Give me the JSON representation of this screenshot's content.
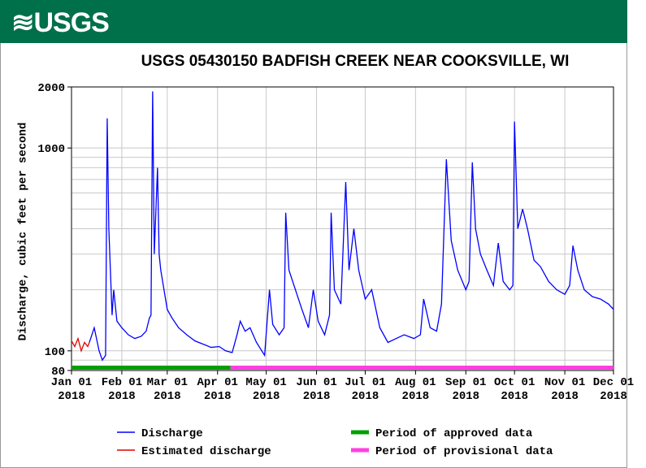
{
  "header": {
    "logo": "≋USGS"
  },
  "chart_data": {
    "type": "line",
    "title": "USGS 05430150 BADFISH CREEK NEAR COOKSVILLE, WI",
    "ylabel": "Discharge, cubic feet per second",
    "log_y": true,
    "grid": true,
    "ylim": [
      80,
      2000
    ],
    "yticks": [
      80,
      100,
      1000,
      2000
    ],
    "minor_grid": [
      90,
      200,
      300,
      400,
      500,
      600,
      700,
      800,
      900
    ],
    "xlim": [
      "2018-01-01",
      "2018-12-01"
    ],
    "xticks": [
      {
        "value": "2018-01-01",
        "label": "Jan 01\n2018"
      },
      {
        "value": "2018-02-01",
        "label": "Feb 01\n2018"
      },
      {
        "value": "2018-03-01",
        "label": "Mar 01\n2018"
      },
      {
        "value": "2018-04-01",
        "label": "Apr 01\n2018"
      },
      {
        "value": "2018-05-01",
        "label": "May 01\n2018"
      },
      {
        "value": "2018-06-01",
        "label": "Jun 01\n2018"
      },
      {
        "value": "2018-07-01",
        "label": "Jul 01\n2018"
      },
      {
        "value": "2018-08-01",
        "label": "Aug 01\n2018"
      },
      {
        "value": "2018-09-01",
        "label": "Sep 01\n2018"
      },
      {
        "value": "2018-10-01",
        "label": "Oct 01\n2018"
      },
      {
        "value": "2018-11-01",
        "label": "Nov 01\n2018"
      },
      {
        "value": "2018-12-01",
        "label": "Dec 01\n2018"
      }
    ],
    "series": [
      {
        "name": "Discharge",
        "color": "#0000ff",
        "x": [
          "2018-01-12",
          "2018-01-15",
          "2018-01-18",
          "2018-01-20",
          "2018-01-22",
          "2018-01-23",
          "2018-01-24",
          "2018-01-26",
          "2018-01-27",
          "2018-01-29",
          "2018-02-01",
          "2018-02-05",
          "2018-02-09",
          "2018-02-13",
          "2018-02-16",
          "2018-02-18",
          "2018-02-19",
          "2018-02-20",
          "2018-02-21",
          "2018-02-23",
          "2018-02-24",
          "2018-02-25",
          "2018-02-27",
          "2018-03-01",
          "2018-03-04",
          "2018-03-08",
          "2018-03-13",
          "2018-03-18",
          "2018-03-23",
          "2018-03-28",
          "2018-04-02",
          "2018-04-06",
          "2018-04-10",
          "2018-04-13",
          "2018-04-15",
          "2018-04-18",
          "2018-04-21",
          "2018-04-25",
          "2018-04-30",
          "2018-05-03",
          "2018-05-05",
          "2018-05-09",
          "2018-05-12",
          "2018-05-13",
          "2018-05-15",
          "2018-05-19",
          "2018-05-23",
          "2018-05-27",
          "2018-05-30",
          "2018-06-02",
          "2018-06-06",
          "2018-06-09",
          "2018-06-10",
          "2018-06-12",
          "2018-06-16",
          "2018-06-19",
          "2018-06-21",
          "2018-06-24",
          "2018-06-27",
          "2018-07-01",
          "2018-07-05",
          "2018-07-10",
          "2018-07-15",
          "2018-07-20",
          "2018-07-25",
          "2018-07-31",
          "2018-08-04",
          "2018-08-06",
          "2018-08-10",
          "2018-08-14",
          "2018-08-17",
          "2018-08-20",
          "2018-08-23",
          "2018-08-27",
          "2018-09-01",
          "2018-09-03",
          "2018-09-05",
          "2018-09-07",
          "2018-09-10",
          "2018-09-14",
          "2018-09-18",
          "2018-09-21",
          "2018-09-24",
          "2018-09-28",
          "2018-09-30",
          "2018-10-01",
          "2018-10-03",
          "2018-10-06",
          "2018-10-09",
          "2018-10-13",
          "2018-10-17",
          "2018-10-22",
          "2018-10-27",
          "2018-11-01",
          "2018-11-04",
          "2018-11-06",
          "2018-11-09",
          "2018-11-13",
          "2018-11-18",
          "2018-11-23",
          "2018-11-28",
          "2018-12-01"
        ],
        "values": [
          110,
          130,
          100,
          90,
          95,
          1400,
          400,
          150,
          200,
          140,
          130,
          120,
          115,
          118,
          125,
          145,
          150,
          1900,
          300,
          800,
          300,
          250,
          200,
          160,
          145,
          130,
          120,
          112,
          108,
          104,
          105,
          100,
          98,
          120,
          140,
          125,
          130,
          110,
          95,
          200,
          135,
          120,
          130,
          480,
          250,
          200,
          160,
          130,
          200,
          140,
          120,
          150,
          480,
          200,
          170,
          680,
          250,
          400,
          250,
          180,
          200,
          130,
          110,
          115,
          120,
          115,
          120,
          180,
          130,
          125,
          170,
          880,
          350,
          250,
          200,
          220,
          850,
          400,
          300,
          250,
          210,
          340,
          220,
          200,
          210,
          1350,
          400,
          500,
          400,
          280,
          260,
          220,
          200,
          190,
          210,
          330,
          250,
          200,
          185,
          180,
          170,
          160
        ]
      },
      {
        "name": "Estimated discharge",
        "color": "#e00000",
        "x": [
          "2018-01-01",
          "2018-01-03",
          "2018-01-05",
          "2018-01-07",
          "2018-01-09",
          "2018-01-11",
          "2018-01-12"
        ],
        "values": [
          112,
          105,
          115,
          100,
          110,
          105,
          110
        ]
      }
    ],
    "periods": [
      {
        "name": "Period of approved data",
        "color": "#00a000",
        "start": "2018-01-01",
        "end": "2018-04-09"
      },
      {
        "name": "Period of provisional data",
        "color": "#ff40e0",
        "start": "2018-04-09",
        "end": "2018-12-01"
      }
    ]
  }
}
